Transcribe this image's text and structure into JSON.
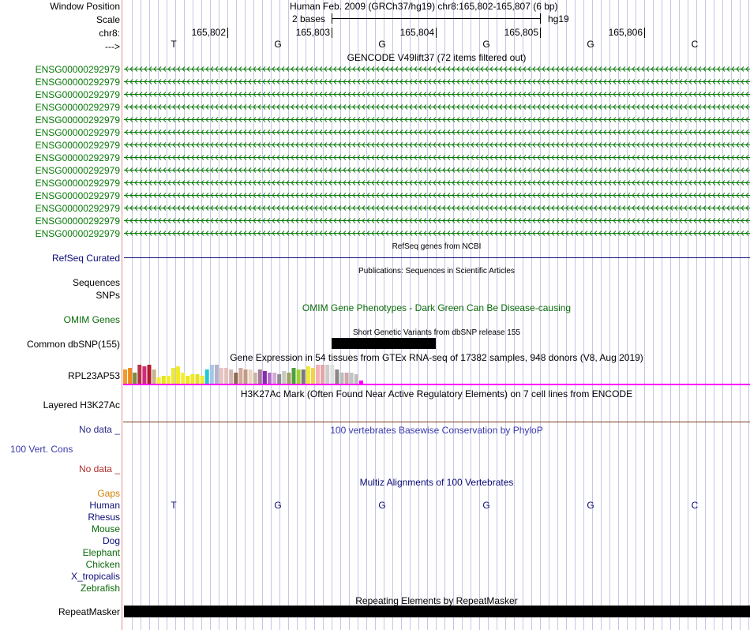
{
  "header": {
    "window_position_label": "Window Position",
    "window_position_text": "Human Feb. 2009 (GRCh37/hg19)   chr8:165,802-165,807 (6 bp)",
    "scale_label": "Scale",
    "scale_bases": "2 bases",
    "scale_db": "hg19",
    "chrom_label": "chr8:",
    "positions": [
      "165,802",
      "165,803",
      "165,804",
      "165,805",
      "165,806"
    ],
    "strand_label": "--->",
    "bases": [
      "T",
      "G",
      "G",
      "G",
      "G",
      "C"
    ]
  },
  "gencode": {
    "title": "GENCODE V49lift37 (72 items filtered out)",
    "gene_labels": [
      "ENSG00000292979",
      "ENSG00000292979",
      "ENSG00000292979",
      "ENSG00000292979",
      "ENSG00000292979",
      "ENSG00000292979",
      "ENSG00000292979",
      "ENSG00000292979",
      "ENSG00000292979",
      "ENSG00000292979",
      "ENSG00000292979",
      "ENSG00000292979",
      "ENSG00000292979",
      "ENSG00000292979"
    ],
    "color": "#0a7a0a"
  },
  "refseq": {
    "title": "RefSeq genes from NCBI",
    "label": "RefSeq Curated",
    "color": "#0c0c78"
  },
  "publications": {
    "title": "Publications: Sequences in Scientific Articles",
    "label_sequences": "Sequences",
    "label_snps": "SNPs"
  },
  "omim": {
    "title": "OMIM Gene Phenotypes - Dark Green Can Be Disease-causing",
    "label": "OMIM Genes",
    "color": "#0a6a0a"
  },
  "dbsnp": {
    "title": "Short Genetic Variants from dbSNP release 155",
    "label": "Common dbSNP(155)"
  },
  "gtex": {
    "title": "Gene Expression in 54 tissues from GTEx RNA-seq of 17382 samples, 948 donors (V8, Aug 2019)",
    "label": "RPL23AP53",
    "bar_colors": [
      "#f29b2a",
      "#f08a1c",
      "#7e8a34",
      "#b4344a",
      "#d02c7e",
      "#b01c30",
      "#c8b48a",
      "#f5ef2a",
      "#e8e41a",
      "#f2ec30",
      "#eee830",
      "#f0ea28",
      "#f4ee2c",
      "#eae622",
      "#ece82a",
      "#e6e024",
      "#f0ea2c",
      "#24c8d4",
      "#a4c8e8",
      "#b4b4c8",
      "#e8c4c4",
      "#e4c0bc",
      "#d4b4b0",
      "#8c6a50",
      "#d4a898",
      "#c09c88",
      "#e8d4c0",
      "#c8b4a4",
      "#a47c9c",
      "#8a2cb0",
      "#b070c8",
      "#d4a8d8",
      "#8c8c8c",
      "#c8c8c0",
      "#a0a060",
      "#4ca040",
      "#9ed12a",
      "#7a7a7a",
      "#f0e838",
      "#eed44a",
      "#f2b0b8",
      "#e4a4a8",
      "#cccccc",
      "#e0e0e0",
      "#888888",
      "#bcbcbc",
      "#cfa8a8",
      "#c4c4c4",
      "#bfbfbf",
      "#ff00ff"
    ],
    "bar_values": [
      18,
      20,
      14,
      24,
      22,
      24,
      18,
      8,
      10,
      10,
      20,
      22,
      14,
      10,
      12,
      12,
      10,
      18,
      24,
      24,
      20,
      20,
      18,
      14,
      20,
      18,
      18,
      14,
      18,
      16,
      14,
      14,
      12,
      16,
      14,
      20,
      18,
      18,
      22,
      20,
      24,
      24,
      24,
      24,
      18,
      14,
      14,
      14,
      12,
      4
    ]
  },
  "h3k27ac": {
    "title": "H3K27Ac Mark (Often Found Near Active Regulatory Elements) on 7 cell lines from ENCODE",
    "label": "Layered H3K27Ac"
  },
  "conservation": {
    "title": "100 vertebrates Basewise Conservation by PhyloP",
    "label": "100 Vert. Cons",
    "no_data_top": "No data _",
    "no_data_bottom": "No data _",
    "color_top": "#2b2b8a",
    "color_label": "#3a3ab0",
    "color_bottom": "#b03030"
  },
  "multiz": {
    "title": "Multiz Alignments of 100 Vertebrates",
    "gaps_label": "Gaps",
    "species": [
      {
        "name": "Human",
        "color": "#0c0c78"
      },
      {
        "name": "Rhesus",
        "color": "#0c0c78"
      },
      {
        "name": "Mouse",
        "color": "#0a6a0a"
      },
      {
        "name": "Dog",
        "color": "#0c0c78"
      },
      {
        "name": "Elephant",
        "color": "#0a6a0a"
      },
      {
        "name": "Chicken",
        "color": "#0a6a0a"
      },
      {
        "name": "X_tropicalis",
        "color": "#0c0c78"
      },
      {
        "name": "Zebrafish",
        "color": "#0a6a0a"
      }
    ],
    "human_bases": [
      "T",
      "G",
      "G",
      "G",
      "G",
      "C"
    ]
  },
  "repeatmasker": {
    "title": "Repeating Elements by RepeatMasker",
    "label": "RepeatMasker"
  },
  "colors": {
    "grid_line": "#c6c6e6",
    "red_divider": "#e09090",
    "magenta": "#ff00ff",
    "h3k27ac_line": "#7a3a1a",
    "gaps": "#d08000"
  }
}
